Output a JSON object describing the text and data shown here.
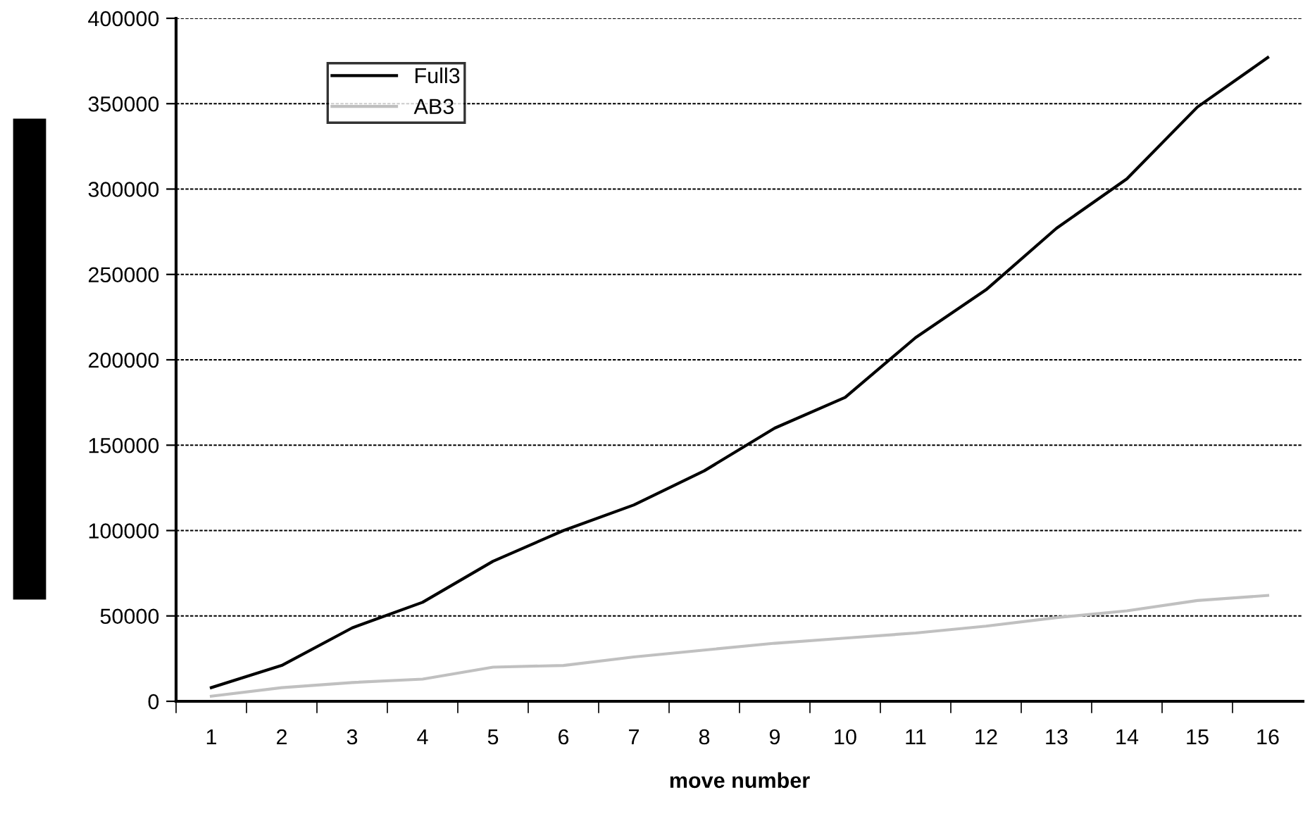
{
  "chart_data": {
    "type": "line",
    "xlabel": "move number",
    "categories": [
      "1",
      "2",
      "3",
      "4",
      "5",
      "6",
      "7",
      "8",
      "9",
      "10",
      "11",
      "12",
      "13",
      "14",
      "15",
      "16"
    ],
    "series": [
      {
        "name": "Full3",
        "color": "#000000",
        "values": [
          8000,
          21000,
          43000,
          58000,
          82000,
          100000,
          115000,
          135000,
          160000,
          178000,
          213000,
          241000,
          277000,
          306000,
          348000,
          377000
        ]
      },
      {
        "name": "AB3",
        "color": "#c0c0c0",
        "values": [
          3000,
          8000,
          11000,
          13000,
          20000,
          21000,
          26000,
          30000,
          34000,
          37000,
          40000,
          44000,
          49000,
          53000,
          59000,
          62000
        ]
      }
    ],
    "ylim": [
      0,
      400000
    ],
    "yticks": [
      0,
      50000,
      100000,
      150000,
      200000,
      250000,
      300000,
      350000,
      400000
    ],
    "grid": "y",
    "legend": "top left",
    "line_style": "solid",
    "marker": "none"
  }
}
